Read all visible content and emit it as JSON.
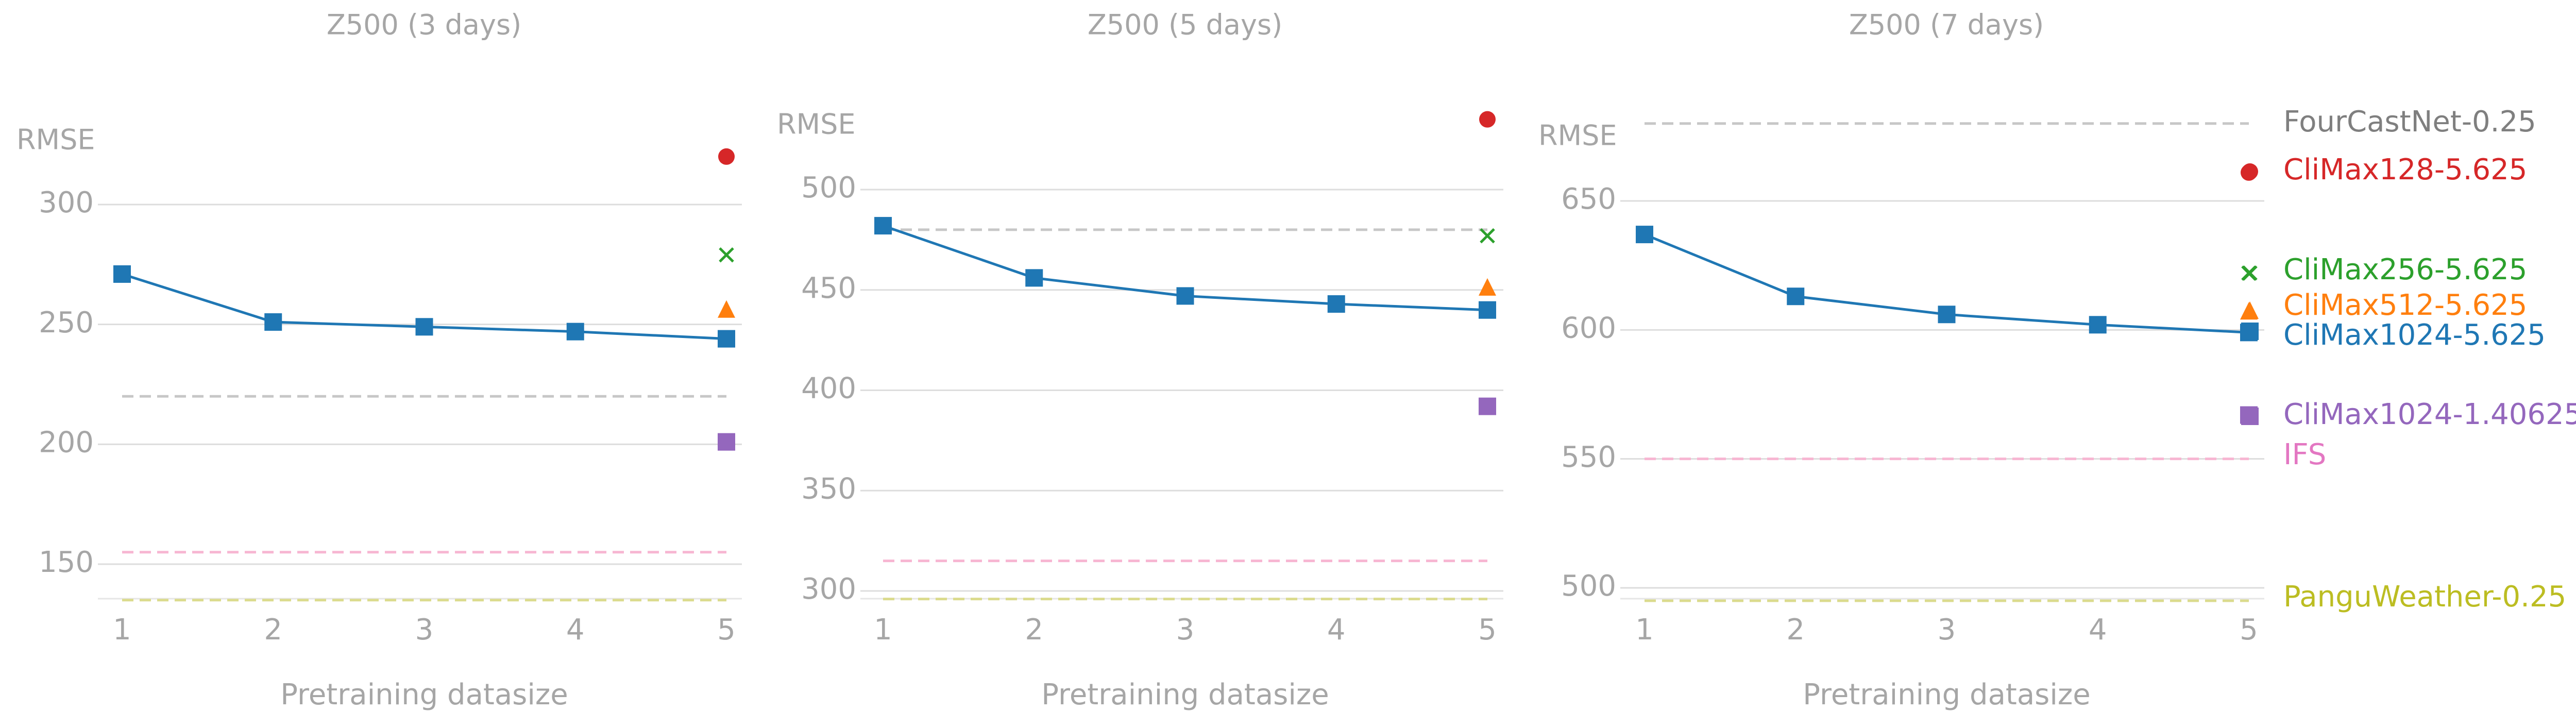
{
  "chart_data": [
    {
      "type": "line",
      "title": "Z500 (3 days)",
      "xlabel": "Pretraining datasize",
      "ylabel": "RMSE",
      "x": [
        1,
        2,
        3,
        4,
        5
      ],
      "xticks": [
        "1",
        "2",
        "3",
        "4",
        "5"
      ],
      "xlim": [
        1,
        5
      ],
      "ylim": [
        133,
        320
      ],
      "yticks": [
        150,
        200,
        250,
        300
      ],
      "yticklabels": [
        "150",
        "200",
        "250",
        "300"
      ],
      "grid": true,
      "series": [
        {
          "name": "CliMax1024-5.625",
          "kind": "line",
          "marker": "square",
          "color": "#1f77b4",
          "values": [
            271,
            251,
            249,
            247,
            244
          ]
        }
      ],
      "reference_lines": [
        {
          "name": "FourCastNet-0.25",
          "color": "#c7c7c7",
          "value": 220
        },
        {
          "name": "IFS",
          "color": "#f7b6d2",
          "value": 155
        },
        {
          "name": "PanguWeather-0.25",
          "color": "#dbdb8d",
          "value": 135
        }
      ],
      "points_at_x5": [
        {
          "name": "CliMax128-5.625",
          "marker": "circle",
          "color": "#d62728",
          "value": 320
        },
        {
          "name": "CliMax256-5.625",
          "marker": "x",
          "color": "#2ca02c",
          "value": 279
        },
        {
          "name": "CliMax512-5.625",
          "marker": "triangle",
          "color": "#ff7f0e",
          "value": 256
        },
        {
          "name": "CliMax1024-1.40625",
          "marker": "square",
          "color": "#9467bd",
          "value": 201
        }
      ]
    },
    {
      "type": "line",
      "title": "Z500 (5 days)",
      "xlabel": "Pretraining datasize",
      "ylabel": "RMSE",
      "x": [
        1,
        2,
        3,
        4,
        5
      ],
      "xticks": [
        "1",
        "2",
        "3",
        "4",
        "5"
      ],
      "xlim": [
        1,
        5
      ],
      "ylim": [
        295,
        535
      ],
      "yticks": [
        300,
        350,
        400,
        450,
        500
      ],
      "yticklabels": [
        "300",
        "350",
        "400",
        "450",
        "500"
      ],
      "grid": true,
      "series": [
        {
          "name": "CliMax1024-5.625",
          "kind": "line",
          "marker": "square",
          "color": "#1f77b4",
          "values": [
            482,
            456,
            447,
            443,
            440
          ]
        }
      ],
      "reference_lines": [
        {
          "name": "FourCastNet-0.25",
          "color": "#c7c7c7",
          "value": 480
        },
        {
          "name": "IFS",
          "color": "#f7b6d2",
          "value": 315
        },
        {
          "name": "PanguWeather-0.25",
          "color": "#dbdb8d",
          "value": 296
        }
      ],
      "points_at_x5": [
        {
          "name": "CliMax128-5.625",
          "marker": "circle",
          "color": "#d62728",
          "value": 535
        },
        {
          "name": "CliMax256-5.625",
          "marker": "x",
          "color": "#2ca02c",
          "value": 477
        },
        {
          "name": "CliMax512-5.625",
          "marker": "triangle",
          "color": "#ff7f0e",
          "value": 451
        },
        {
          "name": "CliMax1024-1.40625",
          "marker": "square",
          "color": "#9467bd",
          "value": 392
        }
      ]
    },
    {
      "type": "line",
      "title": "Z500 (7 days)",
      "xlabel": "Pretraining datasize",
      "ylabel": "RMSE",
      "x": [
        1,
        2,
        3,
        4,
        5
      ],
      "xticks": [
        "1",
        "2",
        "3",
        "4",
        "5"
      ],
      "xlim": [
        1,
        5
      ],
      "ylim": [
        495,
        690
      ],
      "yticks": [
        500,
        550,
        600,
        650
      ],
      "yticklabels": [
        "500",
        "550",
        "600",
        "650"
      ],
      "grid": true,
      "series": [
        {
          "name": "CliMax1024-5.625",
          "kind": "line",
          "marker": "square",
          "color": "#1f77b4",
          "values": [
            637,
            613,
            606,
            602,
            599
          ]
        }
      ],
      "reference_lines": [
        {
          "name": "FourCastNet-0.25",
          "color": "#c7c7c7",
          "value": 680
        },
        {
          "name": "IFS",
          "color": "#f7b6d2",
          "value": 550
        },
        {
          "name": "PanguWeather-0.25",
          "color": "#dbdb8d",
          "value": 495
        }
      ],
      "points_at_x5": [
        {
          "name": "CliMax128-5.625",
          "marker": "circle",
          "color": "#d62728",
          "value": 661
        },
        {
          "name": "CliMax256-5.625",
          "marker": "x",
          "color": "#2ca02c",
          "value": 622
        },
        {
          "name": "CliMax512-5.625",
          "marker": "triangle",
          "color": "#ff7f0e",
          "value": 607
        },
        {
          "name": "CliMax1024-1.40625",
          "marker": "square",
          "color": "#9467bd",
          "value": 567
        }
      ]
    }
  ],
  "legend": {
    "placement": "right",
    "entries": [
      {
        "name": "FourCastNet-0.25",
        "color": "#7f7f7f"
      },
      {
        "name": "CliMax128-5.625",
        "color": "#d62728"
      },
      {
        "name": "CliMax256-5.625",
        "color": "#2ca02c"
      },
      {
        "name": "CliMax512-5.625",
        "color": "#ff7f0e"
      },
      {
        "name": "CliMax1024-5.625",
        "color": "#1f77b4"
      },
      {
        "name": "CliMax1024-1.40625",
        "color": "#9467bd"
      },
      {
        "name": "IFS",
        "color": "#e377c2"
      },
      {
        "name": "PanguWeather-0.25",
        "color": "#bcbd22"
      }
    ]
  },
  "colors": {
    "text_muted": "#a6a6a6",
    "gridline": "#dddddd",
    "axis": "#e6e6e6"
  }
}
